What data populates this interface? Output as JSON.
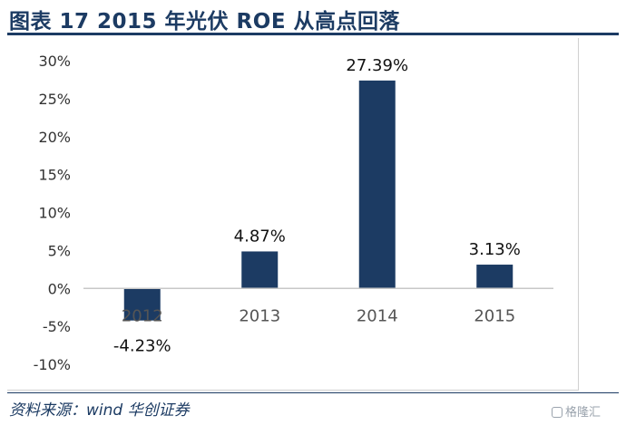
{
  "figure_title": "图表 17   2015 年光伏 ROE 从高点回落",
  "source": "资料来源：wind  华创证券",
  "watermark": "格隆汇",
  "colors": {
    "bar": "#1c3b63",
    "title": "#1c3b63"
  },
  "chart_data": {
    "type": "bar",
    "categories": [
      "2012",
      "2013",
      "2014",
      "2015"
    ],
    "values": [
      -4.23,
      4.87,
      27.39,
      3.13
    ],
    "value_labels": [
      "-4.23%",
      "4.87%",
      "27.39%",
      "3.13%"
    ],
    "ylim": [
      -10,
      30
    ],
    "yticks": [
      30,
      25,
      20,
      15,
      10,
      5,
      0,
      -5,
      -10
    ],
    "ytick_labels": [
      "30%",
      "25%",
      "20%",
      "15%",
      "10%",
      "5%",
      "0%",
      "-5%",
      "-10%"
    ],
    "grid": false,
    "legend": "none"
  }
}
